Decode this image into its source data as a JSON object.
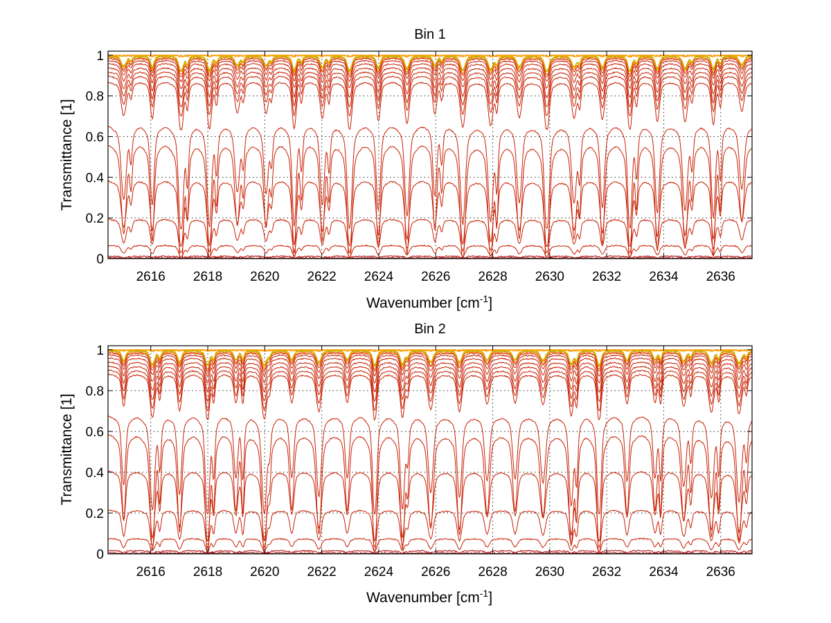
{
  "chart_data": [
    {
      "type": "line",
      "title": "Bin 1",
      "xlabel": "Wavenumber [cm",
      "xlabel_sup": "-1",
      "xlabel_suffix": "]",
      "ylabel": "Transmittance [1]",
      "xlim": [
        2614.5,
        2637.1
      ],
      "ylim": [
        0,
        1.02
      ],
      "xticks": [
        2616,
        2618,
        2620,
        2622,
        2624,
        2626,
        2628,
        2630,
        2632,
        2634,
        2636
      ],
      "xtick_labels": [
        "2616",
        "2618",
        "2620",
        "2622",
        "2624",
        "2626",
        "2628",
        "2630",
        "2632",
        "2634",
        "2636"
      ],
      "yticks": [
        0,
        0.2,
        0.4,
        0.6,
        0.8,
        1
      ],
      "ytick_labels": [
        "0",
        "0.2",
        "0.4",
        "0.6",
        "0.8",
        "1"
      ],
      "grid": true,
      "series_baselines": [
        1.0,
        1.0,
        0.998,
        0.996,
        0.99,
        0.985,
        0.975,
        0.96,
        0.94,
        0.92,
        0.9,
        0.87,
        0.655,
        0.565,
        0.385,
        0.195,
        0.065,
        0.012,
        0.003
      ],
      "series_colors": [
        "#ff8000",
        "#ffa500",
        "#e0a000",
        "#c8b400",
        "#ff6a00",
        "#c83200",
        "#c81e00",
        "#c81e00",
        "#c81e00",
        "#c81e00",
        "#c81e00",
        "#c81e00",
        "#c81e00",
        "#c81e00",
        "#c81e00",
        "#c81e00",
        "#c81e00",
        "#b40000",
        "#8b0000"
      ]
    },
    {
      "type": "line",
      "title": "Bin 2",
      "xlabel": "Wavenumber [cm",
      "xlabel_sup": "-1",
      "xlabel_suffix": "]",
      "ylabel": "Transmittance [1]",
      "xlim": [
        2614.5,
        2637.1
      ],
      "ylim": [
        0,
        1.02
      ],
      "xticks": [
        2616,
        2618,
        2620,
        2622,
        2624,
        2626,
        2628,
        2630,
        2632,
        2634,
        2636
      ],
      "xtick_labels": [
        "2616",
        "2618",
        "2620",
        "2622",
        "2624",
        "2626",
        "2628",
        "2630",
        "2632",
        "2634",
        "2636"
      ],
      "yticks": [
        0,
        0.2,
        0.4,
        0.6,
        0.8,
        1
      ],
      "ytick_labels": [
        "0",
        "0.2",
        "0.4",
        "0.6",
        "0.8",
        "1"
      ],
      "grid": true,
      "series_baselines": [
        1.0,
        1.0,
        0.998,
        0.996,
        0.99,
        0.985,
        0.975,
        0.96,
        0.94,
        0.92,
        0.9,
        0.88,
        0.675,
        0.585,
        0.405,
        0.215,
        0.075,
        0.015,
        0.004
      ],
      "series_colors": [
        "#ff8000",
        "#ffa500",
        "#e0a000",
        "#c8b400",
        "#ff6a00",
        "#c83200",
        "#c81e00",
        "#c81e00",
        "#c81e00",
        "#c81e00",
        "#c81e00",
        "#c81e00",
        "#c81e00",
        "#c81e00",
        "#c81e00",
        "#c81e00",
        "#c81e00",
        "#b40000",
        "#8b0000"
      ]
    }
  ]
}
